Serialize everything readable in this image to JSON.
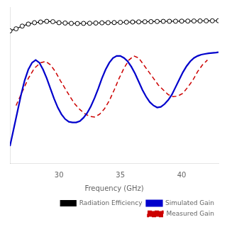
{
  "chart_data": {
    "type": "line",
    "xlabel": "Frequency (GHz)",
    "xlim": [
      26,
      43
    ],
    "xticks": [
      30,
      35,
      40
    ],
    "ylim": [
      -8,
      15
    ],
    "tick_labels": "x",
    "grid": false,
    "legend": "lower right",
    "series": [
      {
        "name": "Radiation Efficiency",
        "color": "#000000",
        "marker": "circle",
        "line_style": "solid",
        "x": [
          26.0,
          26.5,
          27.0,
          27.5,
          28.0,
          28.5,
          29.0,
          29.5,
          30.0,
          30.5,
          31.0,
          31.5,
          32.0,
          32.5,
          33.0,
          33.5,
          34.0,
          34.5,
          35.0,
          35.5,
          36.0,
          36.5,
          37.0,
          37.5,
          38.0,
          38.5,
          39.0,
          39.5,
          40.0,
          40.5,
          41.0,
          41.5,
          42.0,
          42.5,
          43.0
        ],
        "values": [
          11.5,
          11.8,
          12.2,
          12.5,
          12.7,
          12.8,
          12.9,
          12.85,
          12.7,
          12.65,
          12.6,
          12.58,
          12.6,
          12.62,
          12.65,
          12.68,
          12.7,
          12.72,
          12.75,
          12.78,
          12.8,
          12.82,
          12.84,
          12.86,
          12.88,
          12.9,
          12.91,
          12.92,
          12.93,
          12.94,
          12.95,
          12.96,
          12.97,
          12.98,
          12.99
        ]
      },
      {
        "name": "Simulated Gain",
        "color": "#0000cc",
        "line_style": "solid",
        "x": [
          26.0,
          26.3,
          26.6,
          26.9,
          27.2,
          27.5,
          27.8,
          28.1,
          28.4,
          28.7,
          29.0,
          29.3,
          29.6,
          29.9,
          30.2,
          30.5,
          30.8,
          31.1,
          31.4,
          31.7,
          32.0,
          32.3,
          32.6,
          32.9,
          33.2,
          33.5,
          33.8,
          34.1,
          34.4,
          34.7,
          35.0,
          35.3,
          35.6,
          35.9,
          36.2,
          36.5,
          36.8,
          37.1,
          37.4,
          37.7,
          38.0,
          38.3,
          38.6,
          38.9,
          39.2,
          39.5,
          39.8,
          40.1,
          40.4,
          40.7,
          41.0,
          41.3,
          41.6,
          41.9,
          42.2,
          42.5,
          42.8,
          43.0
        ],
        "values": [
          -5.5,
          -3.0,
          -0.5,
          2.0,
          4.2,
          5.8,
          6.8,
          7.2,
          6.8,
          5.8,
          4.5,
          3.0,
          1.5,
          0.2,
          -0.8,
          -1.5,
          -1.9,
          -2.0,
          -2.0,
          -1.8,
          -1.3,
          -0.6,
          0.4,
          1.6,
          3.0,
          4.5,
          5.8,
          6.8,
          7.5,
          7.8,
          7.8,
          7.5,
          7.0,
          6.2,
          5.2,
          4.0,
          2.8,
          1.8,
          1.0,
          0.5,
          0.2,
          0.3,
          0.7,
          1.3,
          2.1,
          3.2,
          4.3,
          5.4,
          6.3,
          7.0,
          7.5,
          7.8,
          8.0,
          8.1,
          8.2,
          8.25,
          8.3,
          8.35
        ]
      },
      {
        "name": "Measured Gain",
        "color": "#cc0000",
        "line_style": "dashed",
        "x": [
          26.5,
          27.0,
          27.5,
          28.0,
          28.5,
          28.9,
          29.3,
          29.7,
          30.1,
          30.5,
          30.9,
          31.3,
          31.7,
          32.1,
          32.5,
          32.9,
          33.3,
          33.7,
          34.1,
          34.5,
          34.9,
          35.3,
          35.7,
          36.1,
          36.5,
          36.9,
          37.3,
          37.7,
          38.1,
          38.5,
          38.9,
          39.3,
          39.7,
          40.1,
          40.5,
          40.9,
          41.3,
          41.7,
          42.1
        ],
        "values": [
          0.5,
          2.5,
          4.5,
          6.0,
          6.8,
          7.0,
          6.5,
          5.5,
          4.2,
          3.0,
          1.8,
          0.7,
          -0.1,
          -0.7,
          -1.1,
          -1.2,
          -0.8,
          0.0,
          1.2,
          2.8,
          4.5,
          6.0,
          7.2,
          7.8,
          7.5,
          6.5,
          5.5,
          4.5,
          3.5,
          2.8,
          2.1,
          1.8,
          1.9,
          2.3,
          3.2,
          4.2,
          5.5,
          6.5,
          7.2
        ]
      }
    ]
  }
}
